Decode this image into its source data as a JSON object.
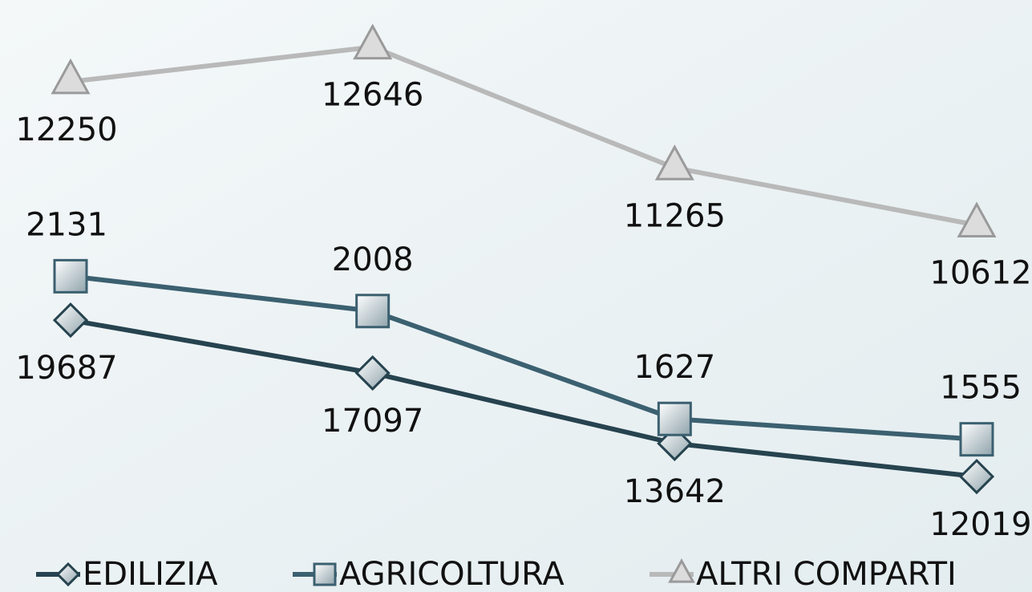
{
  "chart_data": {
    "type": "line",
    "categories": [
      null,
      null,
      null,
      null
    ],
    "series": [
      {
        "name": "EDILIZIA",
        "color": "#26434f",
        "marker": "diamond",
        "values": [
          19687,
          17097,
          13642,
          12019
        ],
        "ylim": [
          11000,
          34600
        ]
      },
      {
        "name": "AGRICOLTURA",
        "color": "#3b6070",
        "marker": "square",
        "values": [
          2131,
          2008,
          1627,
          1555
        ],
        "ylim": [
          1350,
          3050
        ]
      },
      {
        "name": "ALTRI COMPARTI",
        "color": "#b9b9b9",
        "marker": "triangle",
        "values": [
          12250,
          12646,
          11265,
          10612
        ],
        "ylim": [
          7500,
          13000
        ]
      }
    ],
    "legend": "bottom"
  }
}
